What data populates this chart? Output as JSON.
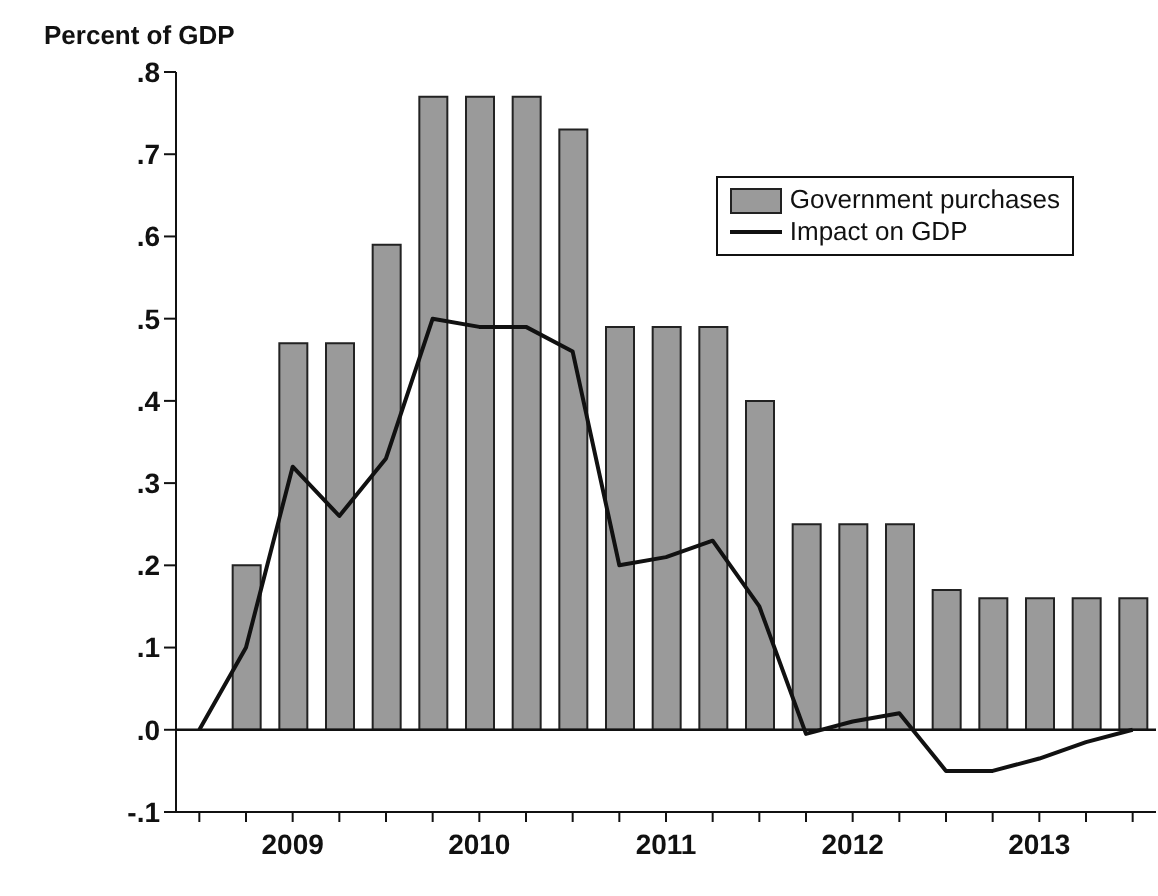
{
  "chart_data": {
    "type": "bar",
    "ylabel": "Percent of GDP",
    "categories": [
      null,
      null,
      "2009",
      null,
      null,
      null,
      "2010",
      null,
      null,
      null,
      "2011",
      null,
      null,
      null,
      "2012",
      null,
      null,
      null,
      "2013",
      null,
      null
    ],
    "series": [
      {
        "name": "Government purchases",
        "color": "#9a9a9a",
        "values": [
          null,
          0.2,
          0.47,
          0.47,
          0.59,
          0.77,
          0.77,
          0.77,
          0.73,
          0.49,
          0.49,
          0.49,
          0.4,
          0.25,
          0.25,
          0.25,
          0.17,
          0.16,
          0.16,
          0.16,
          0.16
        ]
      },
      {
        "name": "Impact on GDP",
        "type": "line",
        "color": "#111111",
        "values": [
          0,
          0.1,
          0.32,
          0.26,
          0.33,
          0.5,
          0.49,
          0.49,
          0.46,
          0.2,
          0.21,
          0.23,
          0.15,
          -0.005,
          0.01,
          0.02,
          -0.05,
          -0.05,
          -0.035,
          -0.015,
          0
        ]
      }
    ],
    "ylim": [
      -0.1,
      0.8
    ],
    "yticks": [
      {
        "value": -0.1,
        "label": "-.1"
      },
      {
        "value": 0,
        "label": ".0"
      },
      {
        "value": 0.1,
        "label": ".1"
      },
      {
        "value": 0.2,
        "label": ".2"
      },
      {
        "value": 0.3,
        "label": ".3"
      },
      {
        "value": 0.4,
        "label": ".4"
      },
      {
        "value": 0.5,
        "label": ".5"
      },
      {
        "value": 0.6,
        "label": ".6"
      },
      {
        "value": 0.7,
        "label": ".7"
      },
      {
        "value": 0.8,
        "label": ".8"
      }
    ],
    "ref_lines": [
      {
        "axis": "y",
        "value": 0,
        "color": "#111111"
      }
    ],
    "legend": "top right",
    "marker": "none"
  }
}
